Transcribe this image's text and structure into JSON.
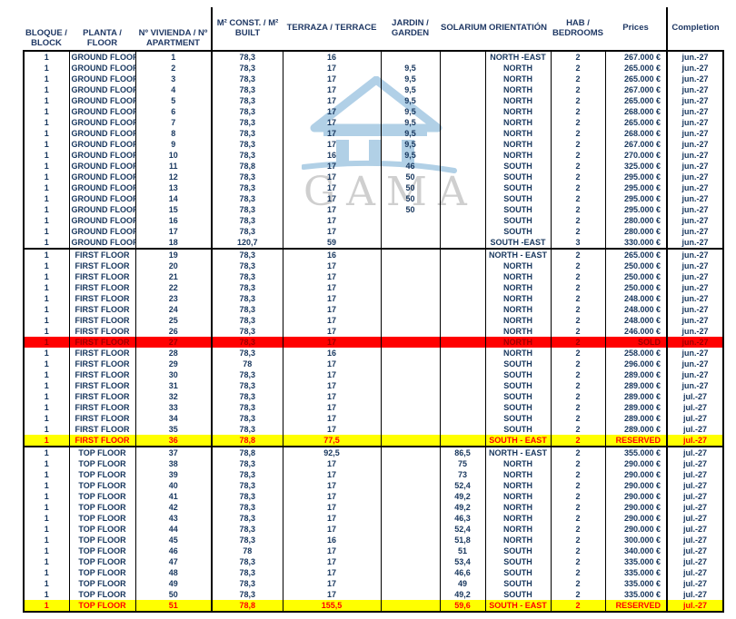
{
  "watermark": {
    "brand": "GAMA",
    "logo": "temple-house-logo"
  },
  "colors": {
    "body_text": "#17365d",
    "header_text": "#1f3864",
    "sold_background": "#ff0000",
    "sold_text": "#9c0000",
    "reserved_background": "#ffff00",
    "reserved_text": "#ff0000",
    "watermark_blue": "#a9cbe4",
    "watermark_gray": "#c7c7c7",
    "border": "#000000"
  },
  "table": {
    "columns": [
      {
        "id": "block",
        "lines": [
          "BLOQUE /",
          "BLOCK"
        ],
        "width": 50,
        "valign": "bottom"
      },
      {
        "id": "floor",
        "lines": [
          "PLANTA / FLOOR"
        ],
        "width": 73,
        "valign": "bottom"
      },
      {
        "id": "apartment",
        "lines": [
          "Nº VIVIENDA / Nº",
          "APARTMENT"
        ],
        "width": 84,
        "valign": "bottom"
      },
      {
        "id": "built",
        "lines": [
          "M² CONST. / M²",
          "BUILT"
        ],
        "width": 78,
        "valign": "middle",
        "thick_left": true
      },
      {
        "id": "terrace",
        "lines": [
          "TERRAZA / TERRACE"
        ],
        "width": 108,
        "valign": "middle"
      },
      {
        "id": "garden",
        "lines": [
          "JARDIN /",
          "GARDEN"
        ],
        "width": 65,
        "valign": "middle"
      },
      {
        "id": "solarium",
        "lines": [
          "SOLARIUM"
        ],
        "width": 50,
        "valign": "middle"
      },
      {
        "id": "orientation",
        "lines": [
          "ORIENTATIÓN"
        ],
        "width": 72,
        "valign": "middle"
      },
      {
        "id": "bedrooms",
        "lines": [
          "HAB /",
          "BEDROOMS"
        ],
        "width": 60,
        "valign": "middle"
      },
      {
        "id": "prices",
        "lines": [
          "Prices"
        ],
        "width": 68,
        "valign": "middle",
        "align": "right"
      },
      {
        "id": "completion",
        "lines": [
          "Completion"
        ],
        "width": 62,
        "valign": "middle",
        "thick_left": true
      }
    ],
    "sections": [
      {
        "id": "ground-floor",
        "rows": [
          [
            "1",
            "GROUND FLOOR",
            "1",
            "78,3",
            "16",
            "",
            "",
            "NORTH -EAST",
            "2",
            "267.000 €",
            "jun.-27",
            ""
          ],
          [
            "1",
            "GROUND FLOOR",
            "2",
            "78,3",
            "17",
            "9,5",
            "",
            "NORTH",
            "2",
            "265.000 €",
            "jun.-27",
            ""
          ],
          [
            "1",
            "GROUND FLOOR",
            "3",
            "78,3",
            "17",
            "9,5",
            "",
            "NORTH",
            "2",
            "265.000 €",
            "jun.-27",
            ""
          ],
          [
            "1",
            "GROUND FLOOR",
            "4",
            "78,3",
            "17",
            "9,5",
            "",
            "NORTH",
            "2",
            "267.000 €",
            "jun.-27",
            ""
          ],
          [
            "1",
            "GROUND FLOOR",
            "5",
            "78,3",
            "17",
            "9,5",
            "",
            "NORTH",
            "2",
            "265.000 €",
            "jun.-27",
            ""
          ],
          [
            "1",
            "GROUND FLOOR",
            "6",
            "78,3",
            "17",
            "9,5",
            "",
            "NORTH",
            "2",
            "268.000 €",
            "jun.-27",
            ""
          ],
          [
            "1",
            "GROUND FLOOR",
            "7",
            "78,3",
            "17",
            "9,5",
            "",
            "NORTH",
            "2",
            "265.000 €",
            "jun.-27",
            ""
          ],
          [
            "1",
            "GROUND FLOOR",
            "8",
            "78,3",
            "17",
            "9,5",
            "",
            "NORTH",
            "2",
            "268.000 €",
            "jun.-27",
            ""
          ],
          [
            "1",
            "GROUND FLOOR",
            "9",
            "78,3",
            "17",
            "9,5",
            "",
            "NORTH",
            "2",
            "267.000 €",
            "jun.-27",
            ""
          ],
          [
            "1",
            "GROUND FLOOR",
            "10",
            "78,3",
            "16",
            "9,5",
            "",
            "NORTH",
            "2",
            "270.000 €",
            "jun.-27",
            ""
          ],
          [
            "1",
            "GROUND FLOOR",
            "11",
            "78,8",
            "17",
            "46",
            "",
            "SOUTH",
            "2",
            "325.000 €",
            "jun.-27",
            ""
          ],
          [
            "1",
            "GROUND FLOOR",
            "12",
            "78,3",
            "17",
            "50",
            "",
            "SOUTH",
            "2",
            "295.000 €",
            "jun.-27",
            ""
          ],
          [
            "1",
            "GROUND FLOOR",
            "13",
            "78,3",
            "17",
            "50",
            "",
            "SOUTH",
            "2",
            "295.000 €",
            "jun.-27",
            ""
          ],
          [
            "1",
            "GROUND FLOOR",
            "14",
            "78,3",
            "17",
            "50",
            "",
            "SOUTH",
            "2",
            "295.000 €",
            "jun.-27",
            ""
          ],
          [
            "1",
            "GROUND FLOOR",
            "15",
            "78,3",
            "17",
            "50",
            "",
            "SOUTH",
            "2",
            "295.000 €",
            "jun.-27",
            ""
          ],
          [
            "1",
            "GROUND FLOOR",
            "16",
            "78,3",
            "17",
            "",
            "",
            "SOUTH",
            "2",
            "280.000 €",
            "jun.-27",
            ""
          ],
          [
            "1",
            "GROUND FLOOR",
            "17",
            "78,3",
            "17",
            "",
            "",
            "SOUTH",
            "2",
            "280.000 €",
            "jun.-27",
            ""
          ],
          [
            "1",
            "GROUND FLOOR",
            "18",
            "120,7",
            "59",
            "",
            "",
            "SOUTH -EAST",
            "3",
            "330.000 €",
            "jun.-27",
            ""
          ]
        ]
      },
      {
        "id": "first-floor",
        "rows": [
          [
            "1",
            "FIRST FLOOR",
            "19",
            "78,3",
            "16",
            "",
            "",
            "NORTH - EAST",
            "2",
            "265.000 €",
            "jun.-27",
            ""
          ],
          [
            "1",
            "FIRST FLOOR",
            "20",
            "78,3",
            "17",
            "",
            "",
            "NORTH",
            "2",
            "250.000 €",
            "jun.-27",
            ""
          ],
          [
            "1",
            "FIRST FLOOR",
            "21",
            "78,3",
            "17",
            "",
            "",
            "NORTH",
            "2",
            "250.000 €",
            "jun.-27",
            ""
          ],
          [
            "1",
            "FIRST FLOOR",
            "22",
            "78,3",
            "17",
            "",
            "",
            "NORTH",
            "2",
            "250.000 €",
            "jun.-27",
            ""
          ],
          [
            "1",
            "FIRST FLOOR",
            "23",
            "78,3",
            "17",
            "",
            "",
            "NORTH",
            "2",
            "248.000 €",
            "jun.-27",
            ""
          ],
          [
            "1",
            "FIRST FLOOR",
            "24",
            "78,3",
            "17",
            "",
            "",
            "NORTH",
            "2",
            "248.000 €",
            "jun.-27",
            ""
          ],
          [
            "1",
            "FIRST FLOOR",
            "25",
            "78,3",
            "17",
            "",
            "",
            "NORTH",
            "2",
            "248.000 €",
            "jun.-27",
            ""
          ],
          [
            "1",
            "FIRST FLOOR",
            "26",
            "78,3",
            "17",
            "",
            "",
            "NORTH",
            "2",
            "246.000 €",
            "jun.-27",
            ""
          ],
          [
            "1",
            "FIRST FLOOR",
            "27",
            "78,3",
            "17",
            "",
            "",
            "NORTH",
            "2",
            "SOLD",
            "jun.-27",
            "sold"
          ],
          [
            "1",
            "FIRST FLOOR",
            "28",
            "78,3",
            "16",
            "",
            "",
            "NORTH",
            "2",
            "258.000 €",
            "jun.-27",
            ""
          ],
          [
            "1",
            "FIRST FLOOR",
            "29",
            "78",
            "17",
            "",
            "",
            "SOUTH",
            "2",
            "296.000 €",
            "jun.-27",
            ""
          ],
          [
            "1",
            "FIRST FLOOR",
            "30",
            "78,3",
            "17",
            "",
            "",
            "SOUTH",
            "2",
            "289.000 €",
            "jun.-27",
            ""
          ],
          [
            "1",
            "FIRST FLOOR",
            "31",
            "78,3",
            "17",
            "",
            "",
            "SOUTH",
            "2",
            "289.000 €",
            "jun.-27",
            ""
          ],
          [
            "1",
            "FIRST FLOOR",
            "32",
            "78,3",
            "17",
            "",
            "",
            "SOUTH",
            "2",
            "289.000 €",
            "jul.-27",
            ""
          ],
          [
            "1",
            "FIRST FLOOR",
            "33",
            "78,3",
            "17",
            "",
            "",
            "SOUTH",
            "2",
            "289.000 €",
            "jul.-27",
            ""
          ],
          [
            "1",
            "FIRST FLOOR",
            "34",
            "78,3",
            "17",
            "",
            "",
            "SOUTH",
            "2",
            "289.000 €",
            "jul.-27",
            ""
          ],
          [
            "1",
            "FIRST FLOOR",
            "35",
            "78,3",
            "17",
            "",
            "",
            "SOUTH",
            "2",
            "289.000 €",
            "jul.-27",
            ""
          ],
          [
            "1",
            "FIRST FLOOR",
            "36",
            "78,8",
            "77,5",
            "",
            "",
            "SOUTH - EAST",
            "2",
            "RESERVED",
            "jul.-27",
            "reserved"
          ]
        ]
      },
      {
        "id": "top-floor",
        "rows": [
          [
            "1",
            "TOP FLOOR",
            "37",
            "78,8",
            "92,5",
            "",
            "86,5",
            "NORTH - EAST",
            "2",
            "355.000 €",
            "jul.-27",
            ""
          ],
          [
            "1",
            "TOP FLOOR",
            "38",
            "78,3",
            "17",
            "",
            "75",
            "NORTH",
            "2",
            "290.000 €",
            "jul.-27",
            ""
          ],
          [
            "1",
            "TOP FLOOR",
            "39",
            "78,3",
            "17",
            "",
            "73",
            "NORTH",
            "2",
            "290.000 €",
            "jul.-27",
            ""
          ],
          [
            "1",
            "TOP FLOOR",
            "40",
            "78,3",
            "17",
            "",
            "52,4",
            "NORTH",
            "2",
            "290.000 €",
            "jul.-27",
            ""
          ],
          [
            "1",
            "TOP FLOOR",
            "41",
            "78,3",
            "17",
            "",
            "49,2",
            "NORTH",
            "2",
            "290.000 €",
            "jul.-27",
            ""
          ],
          [
            "1",
            "TOP FLOOR",
            "42",
            "78,3",
            "17",
            "",
            "49,2",
            "NORTH",
            "2",
            "290.000 €",
            "jul.-27",
            ""
          ],
          [
            "1",
            "TOP FLOOR",
            "43",
            "78,3",
            "17",
            "",
            "46,3",
            "NORTH",
            "2",
            "290.000 €",
            "jul.-27",
            ""
          ],
          [
            "1",
            "TOP FLOOR",
            "44",
            "78,3",
            "17",
            "",
            "52,4",
            "NORTH",
            "2",
            "290.000 €",
            "jul.-27",
            ""
          ],
          [
            "1",
            "TOP FLOOR",
            "45",
            "78,3",
            "16",
            "",
            "51,8",
            "NORTH",
            "2",
            "300.000 €",
            "jul.-27",
            ""
          ],
          [
            "1",
            "TOP FLOOR",
            "46",
            "78",
            "17",
            "",
            "51",
            "SOUTH",
            "2",
            "340.000 €",
            "jul.-27",
            ""
          ],
          [
            "1",
            "TOP FLOOR",
            "47",
            "78,3",
            "17",
            "",
            "53,4",
            "SOUTH",
            "2",
            "335.000 €",
            "jul.-27",
            ""
          ],
          [
            "1",
            "TOP FLOOR",
            "48",
            "78,3",
            "17",
            "",
            "46,6",
            "SOUTH",
            "2",
            "335.000 €",
            "jul.-27",
            ""
          ],
          [
            "1",
            "TOP FLOOR",
            "49",
            "78,3",
            "17",
            "",
            "49",
            "SOUTH",
            "2",
            "335.000 €",
            "jul.-27",
            ""
          ],
          [
            "1",
            "TOP FLOOR",
            "50",
            "78,3",
            "17",
            "",
            "49,2",
            "SOUTH",
            "2",
            "335.000 €",
            "jul.-27",
            ""
          ],
          [
            "1",
            "TOP FLOOR",
            "51",
            "78,8",
            "155,5",
            "",
            "59,6",
            "SOUTH - EAST",
            "2",
            "RESERVED",
            "jul.-27",
            "reserved"
          ]
        ]
      }
    ]
  }
}
